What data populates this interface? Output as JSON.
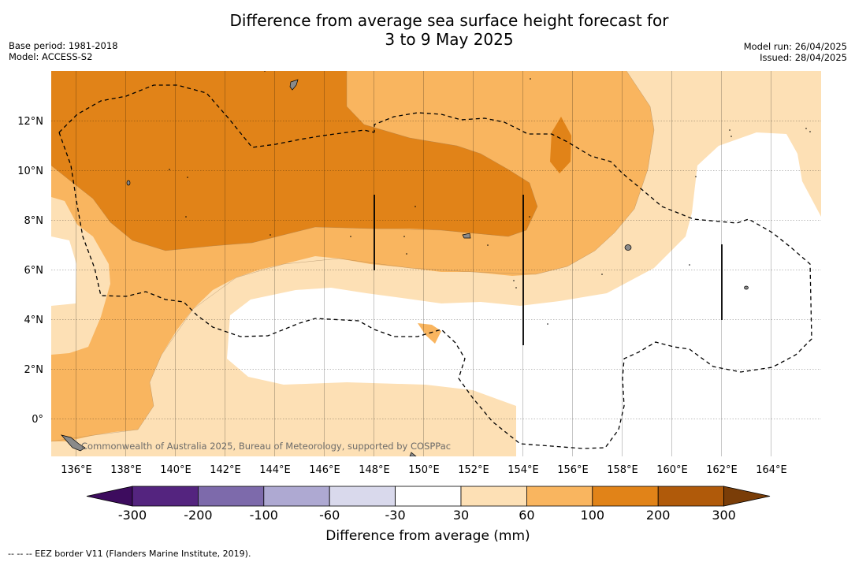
{
  "header": {
    "title_line1": "Difference from average sea surface height forecast for",
    "title_line2": "3 to 9 May 2025",
    "base_period": "Base period: 1981-2018",
    "model": "Model: ACCESS-S2",
    "model_run": "Model run: 26/04/2025",
    "issued": "Issued: 28/04/2025"
  },
  "map": {
    "copyright": "Commonwealth of Australia 2025, Bureau of Meteorology, supported by COSPPac",
    "lon_labels": [
      "136°E",
      "138°E",
      "140°E",
      "142°E",
      "144°E",
      "146°E",
      "148°E",
      "150°E",
      "152°E",
      "154°E",
      "156°E",
      "158°E",
      "160°E",
      "162°E",
      "164°E"
    ],
    "lat_labels": [
      "12°N",
      "10°N",
      "8°N",
      "6°N",
      "4°N",
      "2°N",
      "0°"
    ],
    "extent": {
      "lon": [
        135,
        166
      ],
      "lat": [
        -1.5,
        14
      ]
    },
    "legend_line": "EEZ border",
    "colors": {
      "neg300": "#3d0c5e",
      "neg200": "#54247f",
      "neg100": "#7d6aab",
      "neg60": "#aea9d2",
      "neg30": "#d9d9ec",
      "near_zero": "#ffffff",
      "pos30": "#fde0b5",
      "pos60": "#f9b55f",
      "pos100": "#e18318",
      "pos200": "#b05a0a",
      "pos300": "#7a3d08"
    }
  },
  "colorbar": {
    "ticks": [
      "-300",
      "-200",
      "-100",
      "-60",
      "-30",
      "30",
      "60",
      "100",
      "200",
      "300"
    ],
    "title": "Difference from average (mm)"
  },
  "footnote": "--  --  -- EEZ border V11 (Flanders Marine Institute, 2019)."
}
